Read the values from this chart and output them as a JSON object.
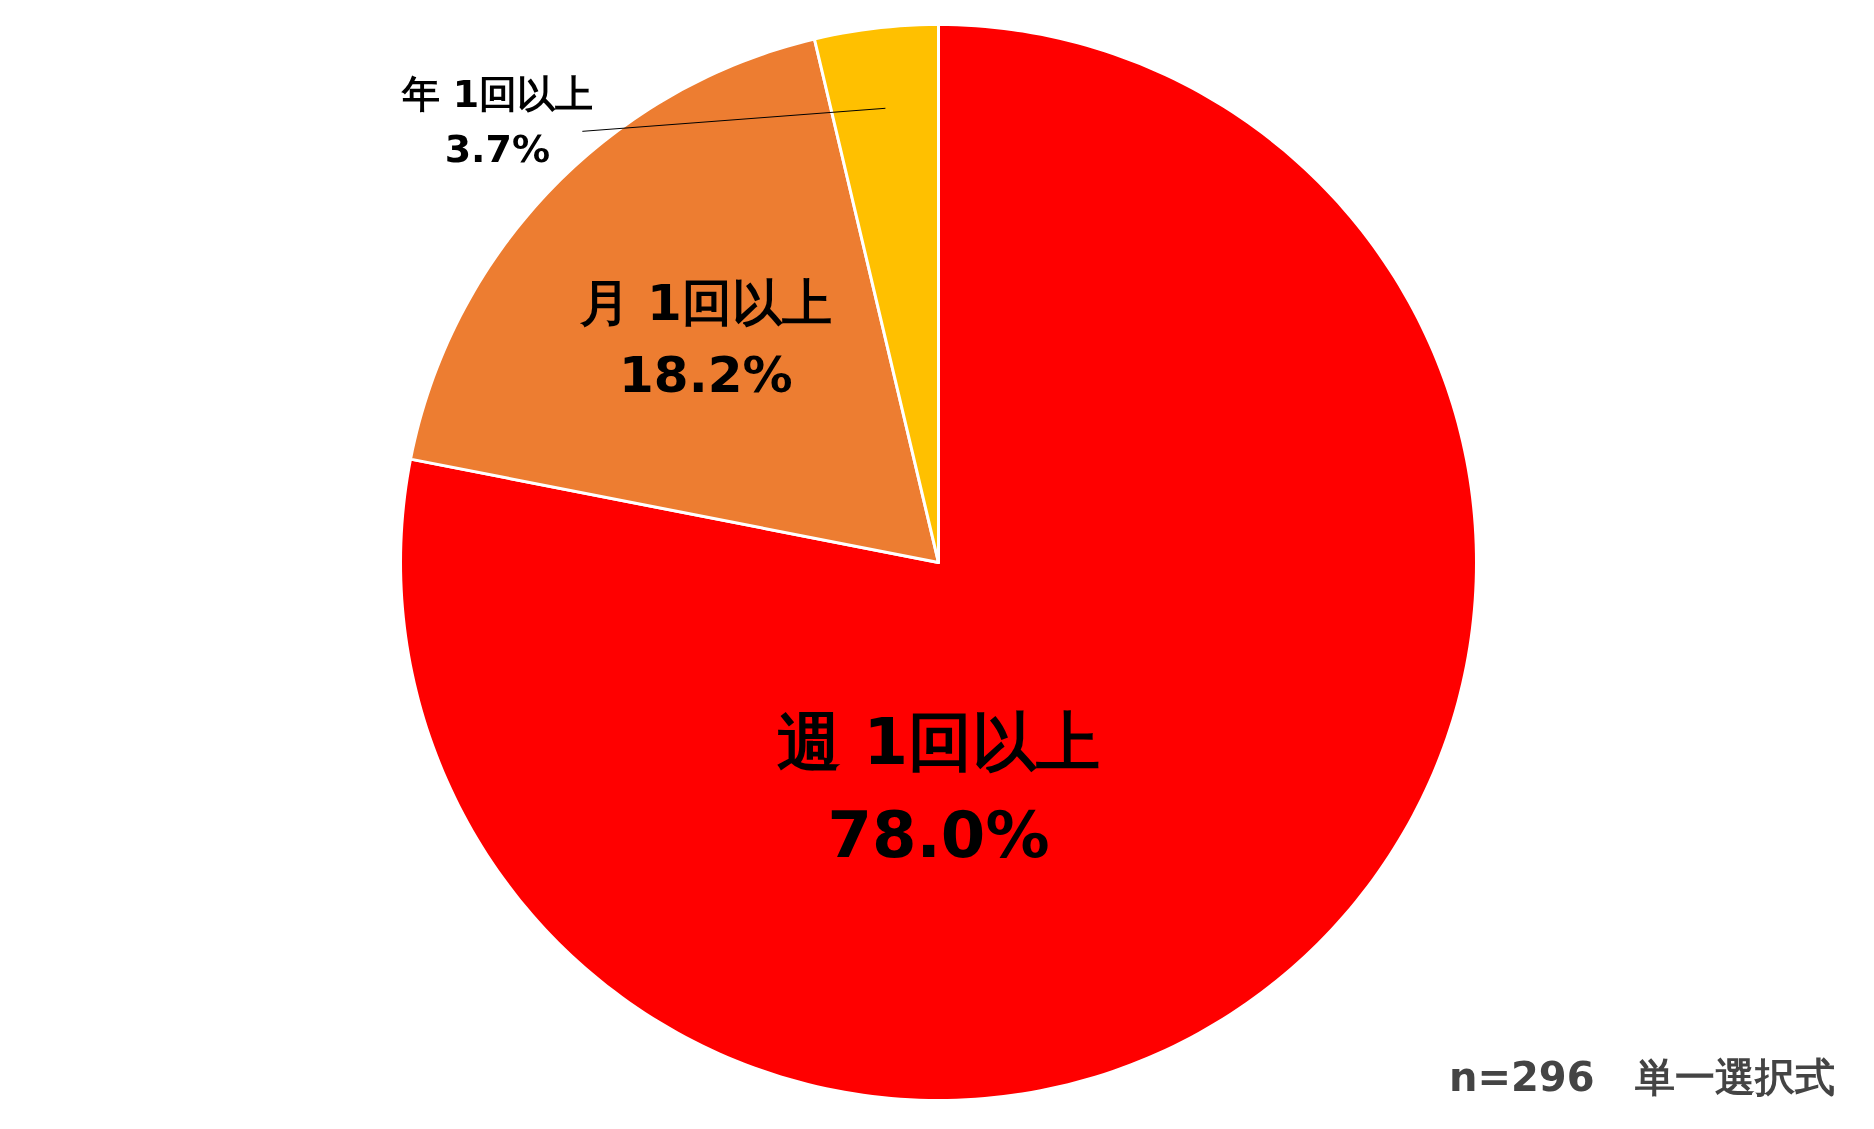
{
  "chart_data": {
    "type": "pie",
    "categories": [
      "週 1回以上",
      "月 1回以上",
      "年 1回以上"
    ],
    "values": [
      78.0,
      18.2,
      3.7
    ],
    "value_labels": [
      "78.0%",
      "18.2%",
      "3.7%"
    ],
    "colors": [
      "#ff0000",
      "#ed7d31",
      "#ffc000"
    ],
    "annotations": [
      "n=296　単一選択式"
    ]
  }
}
